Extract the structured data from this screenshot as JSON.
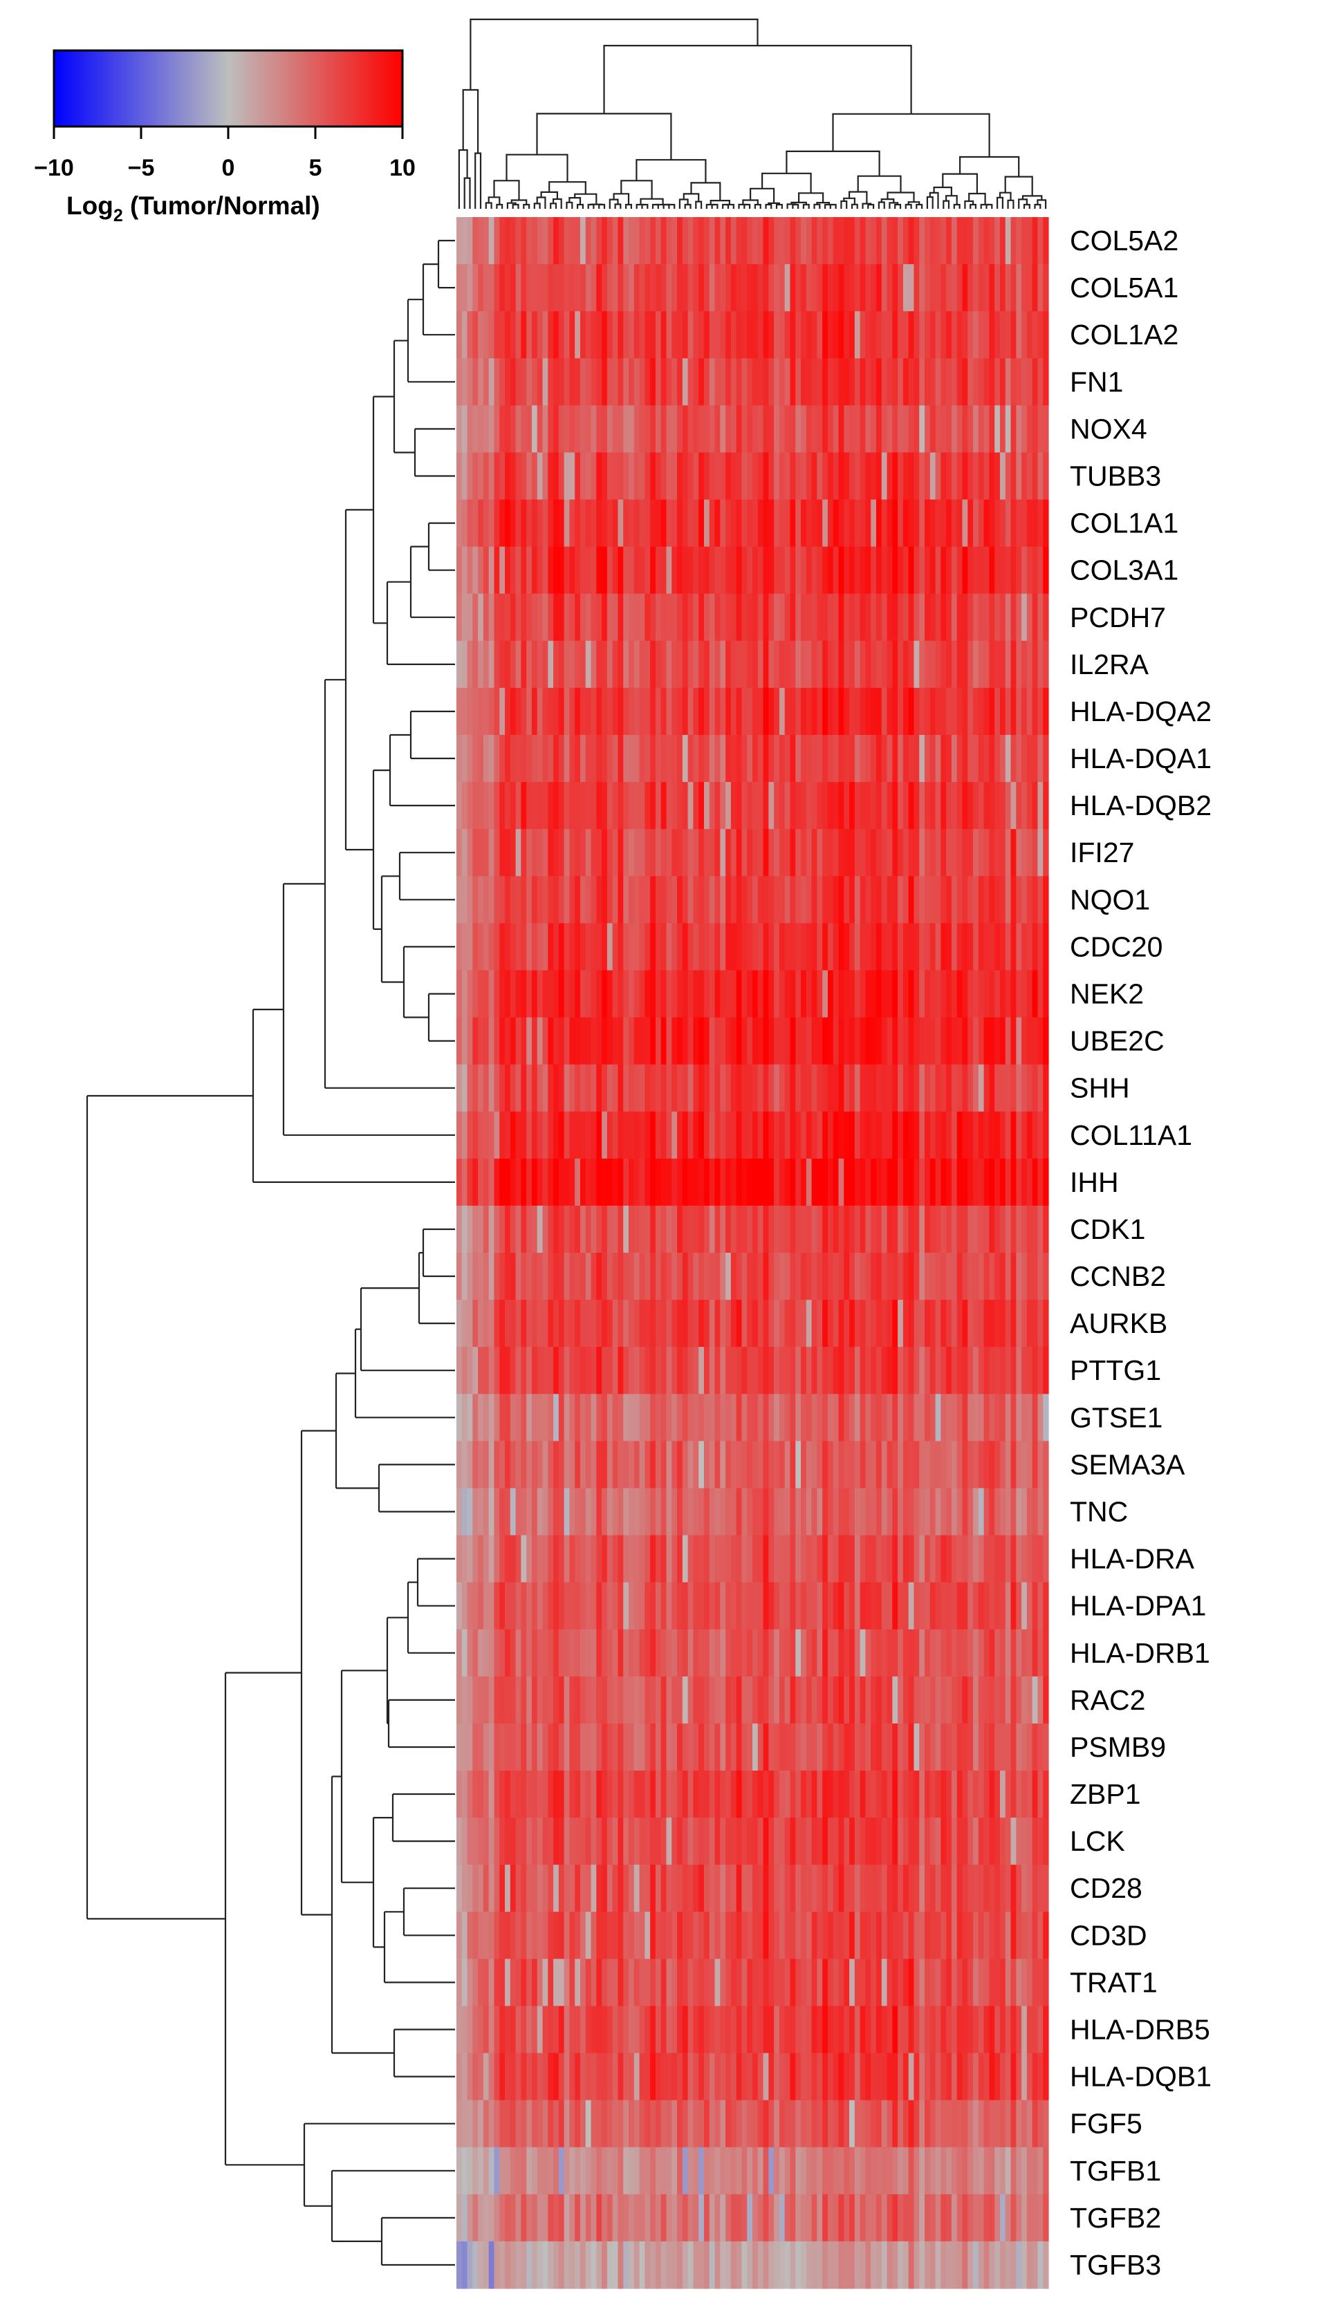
{
  "chart_data": {
    "type": "heatmap",
    "title": "",
    "row_labels": [
      "COL5A2",
      "COL5A1",
      "COL1A2",
      "FN1",
      "NOX4",
      "TUBB3",
      "COL1A1",
      "COL3A1",
      "PCDH7",
      "IL2RA",
      "HLA-DQA2",
      "HLA-DQA1",
      "HLA-DQB2",
      "IFI27",
      "NQO1",
      "CDC20",
      "NEK2",
      "UBE2C",
      "SHH",
      "COL11A1",
      "IHH",
      "CDK1",
      "CCNB2",
      "AURKB",
      "PTTG1",
      "GTSE1",
      "SEMA3A",
      "TNC",
      "HLA-DRA",
      "HLA-DPA1",
      "HLA-DRB1",
      "RAC2",
      "PSMB9",
      "ZBP1",
      "LCK",
      "CD28",
      "CD3D",
      "TRAT1",
      "HLA-DRB5",
      "HLA-DQB1",
      "FGF5",
      "TGFB1",
      "TGFB2",
      "TGFB3"
    ],
    "row_mean_log2": [
      6.0,
      6.5,
      6.8,
      6.5,
      5.5,
      6.5,
      7.5,
      7.5,
      6.5,
      6.0,
      7.0,
      6.0,
      7.0,
      6.5,
      6.5,
      7.0,
      8.0,
      8.0,
      6.5,
      8.0,
      9.0,
      6.0,
      6.0,
      6.5,
      6.5,
      4.5,
      5.0,
      4.5,
      5.5,
      6.0,
      5.5,
      5.5,
      5.5,
      6.5,
      6.0,
      6.0,
      6.0,
      6.0,
      6.5,
      6.5,
      5.0,
      3.0,
      4.0,
      1.5
    ],
    "n_samples": 110,
    "colorbar": {
      "title_prefix": "Log",
      "title_sub": "2",
      "title_suffix": " (Tumor/Normal)",
      "ticks": [
        "−10",
        "−5",
        "0",
        "5",
        "10"
      ],
      "tick_values": [
        -10,
        -5,
        0,
        5,
        10
      ],
      "vmin": -10,
      "vmax": 10,
      "color_low": "#0000ff",
      "color_mid": "#bebebe",
      "color_high": "#ff0000"
    },
    "row_dendrogram": true,
    "column_dendrogram": true
  }
}
